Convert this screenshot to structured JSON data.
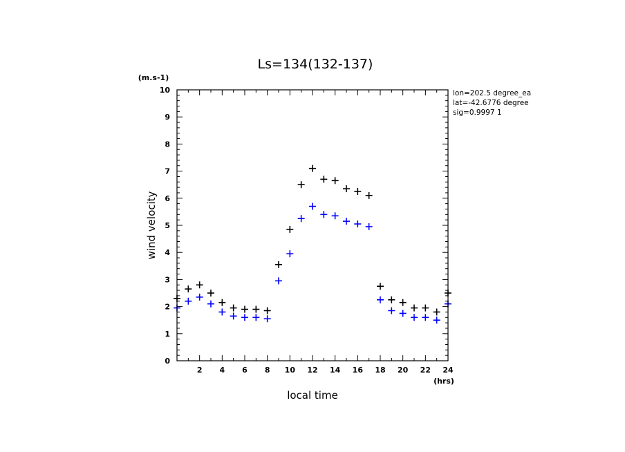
{
  "chart_data": {
    "type": "scatter",
    "title": "Ls=134(132-137)",
    "xlabel": "local time",
    "ylabel": "wind velocity",
    "x_unit": "(hrs)",
    "y_unit": "(m.s-1)",
    "xlim": [
      0,
      24
    ],
    "ylim": [
      0,
      10
    ],
    "x_ticks": [
      2,
      4,
      6,
      8,
      10,
      12,
      14,
      16,
      18,
      20,
      22,
      24
    ],
    "y_ticks": [
      0,
      1,
      2,
      3,
      4,
      5,
      6,
      7,
      8,
      9,
      10
    ],
    "grid": false,
    "marker": "+",
    "info_lines": [
      "lon=202.5 degree_ea",
      "lat=-42.6776 degree",
      "sig=0.9997 1"
    ],
    "series": [
      {
        "color": "#000000",
        "x": [
          0,
          1,
          2,
          3,
          4,
          5,
          6,
          7,
          8,
          9,
          10,
          11,
          12,
          13,
          14,
          15,
          16,
          17,
          18,
          19,
          20,
          21,
          22,
          23,
          24
        ],
        "values": [
          2.3,
          2.65,
          2.8,
          2.5,
          2.15,
          1.95,
          1.9,
          1.9,
          1.85,
          3.55,
          4.85,
          6.5,
          7.1,
          6.7,
          6.65,
          6.35,
          6.25,
          6.1,
          2.75,
          2.25,
          2.15,
          1.95,
          1.95,
          1.8,
          2.5
        ]
      },
      {
        "color": "#0000ff",
        "x": [
          0,
          1,
          2,
          3,
          4,
          5,
          6,
          7,
          8,
          9,
          10,
          11,
          12,
          13,
          14,
          15,
          16,
          17,
          18,
          19,
          20,
          21,
          22,
          23,
          24
        ],
        "values": [
          1.95,
          2.2,
          2.35,
          2.1,
          1.8,
          1.65,
          1.6,
          1.6,
          1.55,
          2.95,
          3.95,
          5.25,
          5.7,
          5.4,
          5.35,
          5.15,
          5.05,
          4.95,
          2.25,
          1.85,
          1.75,
          1.6,
          1.6,
          1.5,
          2.1
        ]
      }
    ]
  }
}
